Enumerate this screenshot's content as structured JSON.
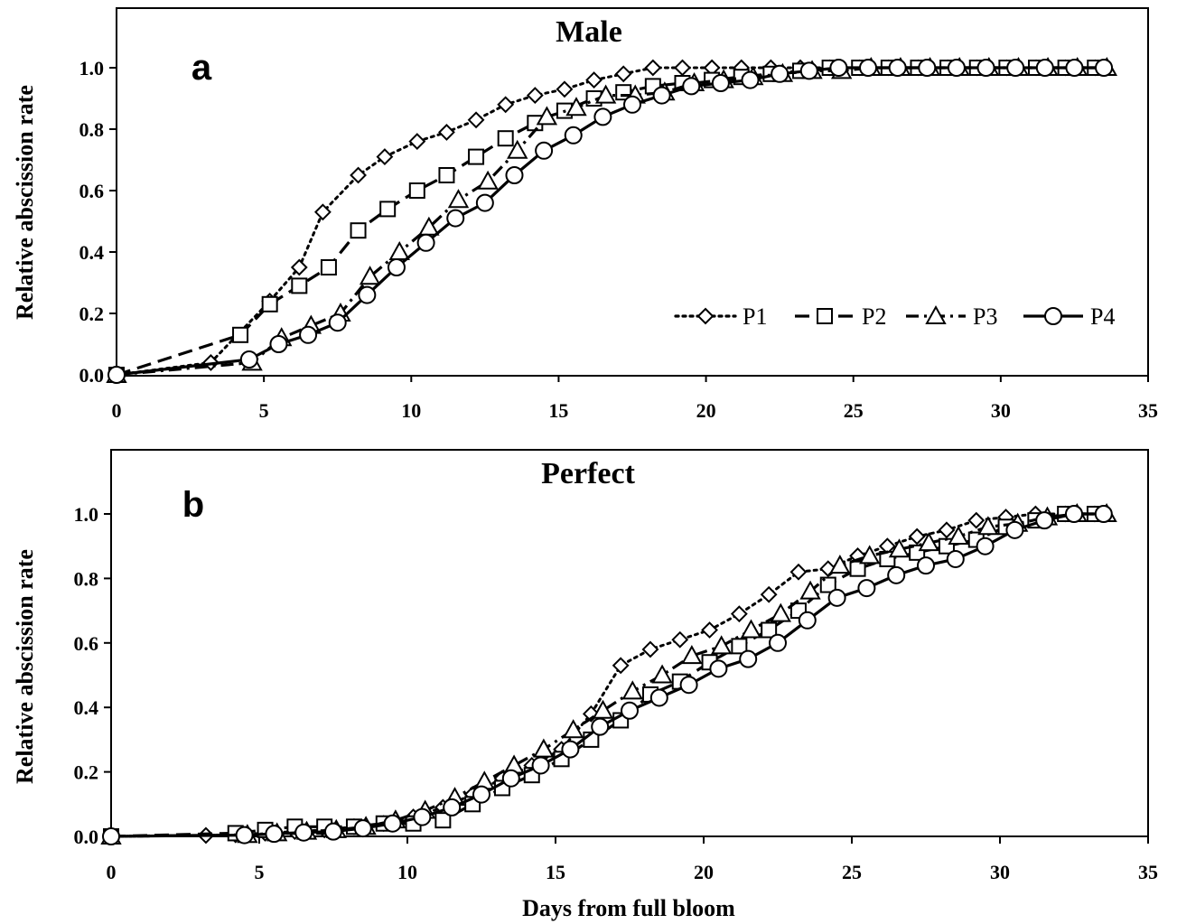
{
  "chart_data": [
    {
      "type": "line",
      "title": "Male",
      "panel_label": "a",
      "xlabel": "",
      "ylabel": "Relative abscission rate",
      "xlim": [
        0,
        35
      ],
      "ylim": [
        0,
        1.0
      ],
      "x_ticks": [
        "0",
        "5",
        "10",
        "15",
        "20",
        "25",
        "30",
        "35"
      ],
      "y_ticks": [
        "0.0",
        "0.2",
        "0.4",
        "0.6",
        "0.8",
        "1.0"
      ],
      "legend_position": "lower-right",
      "series": [
        {
          "name": "P1",
          "marker": "diamond",
          "line": "dotted",
          "x": [
            0,
            3.2,
            5.2,
            6.2,
            7.0,
            8.2,
            9.1,
            10.2,
            11.2,
            12.2,
            13.2,
            14.2,
            15.2,
            16.2,
            17.2,
            18.2,
            19.2,
            20.2,
            21.2,
            22.2,
            23.2,
            24.2,
            25.2,
            26.2,
            27.2,
            28.2,
            29.2,
            30.2,
            31.2,
            32.2,
            33.2
          ],
          "y": [
            0,
            0.04,
            0.24,
            0.35,
            0.53,
            0.65,
            0.71,
            0.76,
            0.79,
            0.83,
            0.88,
            0.91,
            0.93,
            0.96,
            0.98,
            1.0,
            1.0,
            1.0,
            1.0,
            1.0,
            1.0,
            1.0,
            1.0,
            1.0,
            1.0,
            1.0,
            1.0,
            1.0,
            1.0,
            1.0,
            1.0
          ]
        },
        {
          "name": "P2",
          "marker": "square",
          "line": "dashed",
          "x": [
            0,
            4.2,
            5.2,
            6.2,
            7.2,
            8.2,
            9.2,
            10.2,
            11.2,
            12.2,
            13.2,
            14.2,
            15.2,
            16.2,
            17.2,
            18.2,
            19.2,
            20.2,
            21.2,
            22.2,
            23.2,
            24.2,
            25.2,
            26.2,
            27.2,
            28.2,
            29.2,
            30.2,
            31.2,
            32.2,
            33.2
          ],
          "y": [
            0,
            0.13,
            0.23,
            0.29,
            0.35,
            0.47,
            0.54,
            0.6,
            0.65,
            0.71,
            0.77,
            0.82,
            0.86,
            0.9,
            0.92,
            0.94,
            0.95,
            0.96,
            0.97,
            0.98,
            0.99,
            1.0,
            1.0,
            1.0,
            1.0,
            1.0,
            1.0,
            1.0,
            1.0,
            1.0,
            1.0
          ]
        },
        {
          "name": "P3",
          "marker": "triangle",
          "line": "dash-dot",
          "x": [
            0,
            4.6,
            5.6,
            6.6,
            7.6,
            8.6,
            9.6,
            10.6,
            11.6,
            12.6,
            13.6,
            14.6,
            15.6,
            16.6,
            17.6,
            18.6,
            19.6,
            20.6,
            21.6,
            22.6,
            23.6,
            24.6,
            25.6,
            26.6,
            27.6,
            28.6,
            29.6,
            30.6,
            31.6,
            32.6,
            33.6
          ],
          "y": [
            0,
            0.04,
            0.12,
            0.16,
            0.2,
            0.32,
            0.4,
            0.48,
            0.57,
            0.63,
            0.73,
            0.84,
            0.87,
            0.91,
            0.91,
            0.92,
            0.95,
            0.96,
            0.97,
            0.98,
            0.99,
            0.99,
            1.0,
            1.0,
            1.0,
            1.0,
            1.0,
            1.0,
            1.0,
            1.0,
            1.0
          ]
        },
        {
          "name": "P4",
          "marker": "circle",
          "line": "solid",
          "x": [
            0,
            4.5,
            5.5,
            6.5,
            7.5,
            8.5,
            9.5,
            10.5,
            11.5,
            12.5,
            13.5,
            14.5,
            15.5,
            16.5,
            17.5,
            18.5,
            19.5,
            20.5,
            21.5,
            22.5,
            23.5,
            24.5,
            25.5,
            26.5,
            27.5,
            28.5,
            29.5,
            30.5,
            31.5,
            32.5,
            33.5
          ],
          "y": [
            0,
            0.05,
            0.1,
            0.13,
            0.17,
            0.26,
            0.35,
            0.43,
            0.51,
            0.56,
            0.65,
            0.73,
            0.78,
            0.84,
            0.88,
            0.91,
            0.94,
            0.95,
            0.96,
            0.98,
            0.99,
            1.0,
            1.0,
            1.0,
            1.0,
            1.0,
            1.0,
            1.0,
            1.0,
            1.0,
            1.0
          ]
        }
      ]
    },
    {
      "type": "line",
      "title": "Perfect",
      "panel_label": "b",
      "xlabel": "Days from full bloom",
      "ylabel": "Relative abscission rate",
      "xlim": [
        0,
        35
      ],
      "ylim": [
        0,
        1.0
      ],
      "x_ticks": [
        "0",
        "5",
        "10",
        "15",
        "20",
        "25",
        "30",
        "35"
      ],
      "y_ticks": [
        "0.0",
        "0.2",
        "0.4",
        "0.6",
        "0.8",
        "1.0"
      ],
      "series": [
        {
          "name": "P1",
          "marker": "diamond",
          "line": "dotted",
          "x": [
            0,
            3.2,
            4.2,
            5.2,
            6.2,
            7.2,
            8.2,
            9.2,
            10.2,
            11.2,
            12.2,
            13.2,
            14.2,
            15.2,
            16.2,
            17.2,
            18.2,
            19.2,
            20.2,
            21.2,
            22.2,
            23.2,
            24.2,
            25.2,
            26.2,
            27.2,
            28.2,
            29.2,
            30.2,
            31.2,
            32.2,
            33.2
          ],
          "y": [
            0,
            0.003,
            0.005,
            0.01,
            0.015,
            0.02,
            0.03,
            0.04,
            0.06,
            0.09,
            0.13,
            0.18,
            0.22,
            0.27,
            0.38,
            0.53,
            0.58,
            0.61,
            0.64,
            0.69,
            0.75,
            0.82,
            0.83,
            0.87,
            0.9,
            0.93,
            0.95,
            0.98,
            0.99,
            1.0,
            1.0,
            1.0
          ]
        },
        {
          "name": "P2",
          "marker": "square",
          "line": "dashed",
          "x": [
            0,
            4.2,
            5.2,
            6.2,
            7.2,
            8.2,
            9.2,
            10.2,
            11.2,
            12.2,
            13.2,
            14.2,
            15.2,
            16.2,
            17.2,
            18.2,
            19.2,
            20.2,
            21.2,
            22.2,
            23.2,
            24.2,
            25.2,
            26.2,
            27.2,
            28.2,
            29.2,
            30.2,
            31.2,
            32.2,
            33.2
          ],
          "y": [
            0,
            0.01,
            0.02,
            0.03,
            0.03,
            0.03,
            0.04,
            0.04,
            0.05,
            0.1,
            0.15,
            0.19,
            0.24,
            0.3,
            0.36,
            0.44,
            0.48,
            0.54,
            0.59,
            0.64,
            0.7,
            0.78,
            0.83,
            0.86,
            0.88,
            0.9,
            0.92,
            0.96,
            0.98,
            1.0,
            1.0
          ]
        },
        {
          "name": "P3",
          "marker": "triangle",
          "line": "dash-dot",
          "x": [
            0,
            4.6,
            5.6,
            6.6,
            7.6,
            8.6,
            9.6,
            10.6,
            11.6,
            12.6,
            13.6,
            14.6,
            15.6,
            16.6,
            17.6,
            18.6,
            19.6,
            20.6,
            21.6,
            22.6,
            23.6,
            24.6,
            25.6,
            26.6,
            27.6,
            28.6,
            29.6,
            30.6,
            31.6,
            32.6,
            33.6
          ],
          "y": [
            0,
            0.005,
            0.01,
            0.015,
            0.02,
            0.03,
            0.05,
            0.08,
            0.12,
            0.17,
            0.22,
            0.27,
            0.33,
            0.39,
            0.45,
            0.5,
            0.56,
            0.59,
            0.64,
            0.69,
            0.76,
            0.84,
            0.87,
            0.89,
            0.91,
            0.93,
            0.96,
            0.97,
            0.99,
            1.0,
            1.0
          ]
        },
        {
          "name": "P4",
          "marker": "circle",
          "line": "solid",
          "x": [
            0,
            4.5,
            5.5,
            6.5,
            7.5,
            8.5,
            9.5,
            10.5,
            11.5,
            12.5,
            13.5,
            14.5,
            15.5,
            16.5,
            17.5,
            18.5,
            19.5,
            20.5,
            21.5,
            22.5,
            23.5,
            24.5,
            25.5,
            26.5,
            27.5,
            28.5,
            29.5,
            30.5,
            31.5,
            32.5,
            33.5
          ],
          "y": [
            0,
            0.004,
            0.008,
            0.012,
            0.015,
            0.025,
            0.04,
            0.06,
            0.09,
            0.13,
            0.18,
            0.22,
            0.27,
            0.34,
            0.39,
            0.43,
            0.47,
            0.52,
            0.55,
            0.6,
            0.67,
            0.74,
            0.77,
            0.81,
            0.84,
            0.86,
            0.9,
            0.95,
            0.98,
            1.0,
            1.0
          ]
        }
      ]
    }
  ]
}
